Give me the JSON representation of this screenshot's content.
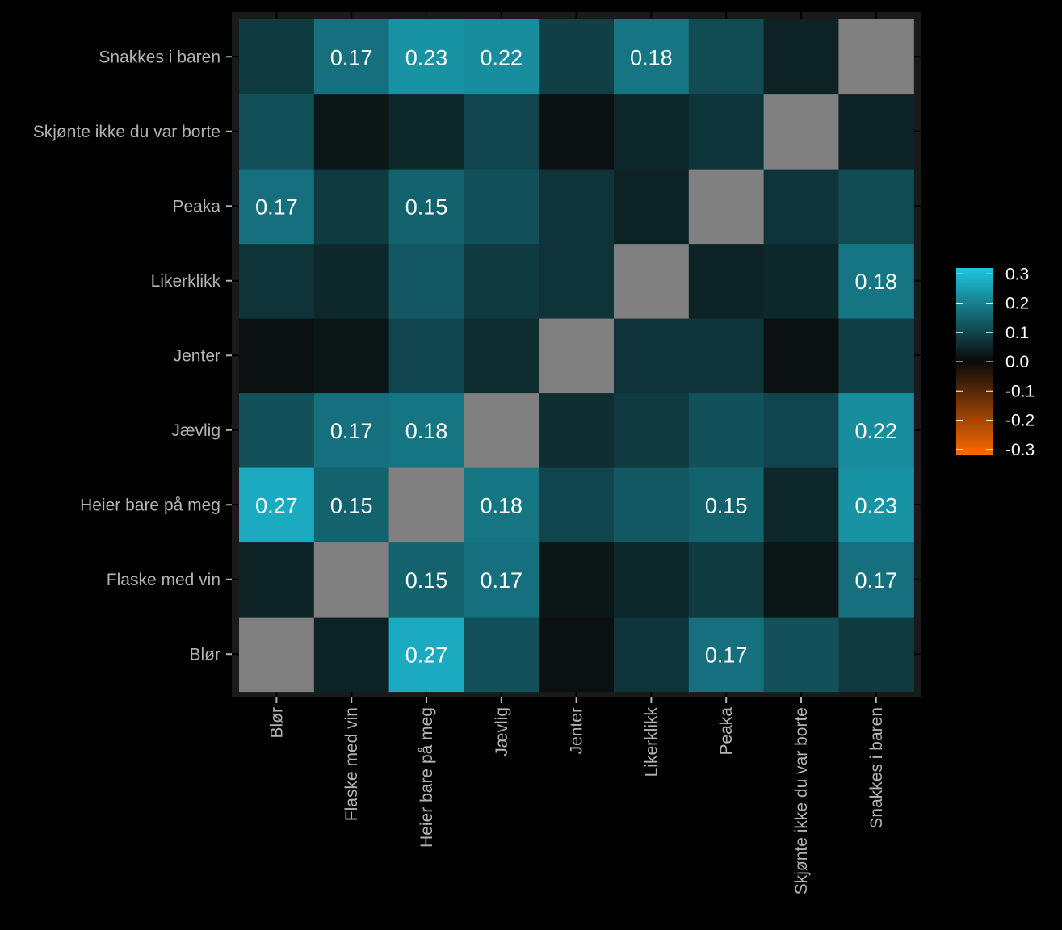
{
  "chart_data": {
    "type": "heatmap",
    "title": "",
    "xlabel": "",
    "ylabel": "",
    "x_categories": [
      "Blør",
      "Flaske med vin",
      "Heier bare på meg",
      "Jævlig",
      "Jenter",
      "Likerklikk",
      "Peaka",
      "Skjønte ikke du var borte",
      "Snakkes i baren"
    ],
    "y_categories": [
      "Blør",
      "Flaske med vin",
      "Heier bare på meg",
      "Jævlig",
      "Jenter",
      "Likerklikk",
      "Peaka",
      "Skjønte ikke du var borte",
      "Snakkes i baren"
    ],
    "matrix": [
      [
        null,
        0.04,
        0.27,
        0.12,
        0.01,
        0.07,
        0.17,
        0.12,
        0.08
      ],
      [
        0.04,
        null,
        0.15,
        0.17,
        0.02,
        0.05,
        0.08,
        0.02,
        0.17
      ],
      [
        0.27,
        0.15,
        null,
        0.18,
        0.1,
        0.13,
        0.15,
        0.05,
        0.23
      ],
      [
        0.12,
        0.17,
        0.18,
        null,
        0.06,
        0.08,
        0.12,
        0.1,
        0.22
      ],
      [
        0.01,
        0.02,
        0.1,
        0.06,
        null,
        0.07,
        0.07,
        0.01,
        0.09
      ],
      [
        0.07,
        0.05,
        0.13,
        0.08,
        0.07,
        null,
        0.04,
        0.05,
        0.18
      ],
      [
        0.17,
        0.08,
        0.15,
        0.12,
        0.07,
        0.04,
        null,
        0.07,
        0.11
      ],
      [
        0.12,
        0.02,
        0.05,
        0.1,
        0.01,
        0.05,
        0.07,
        null,
        0.04
      ],
      [
        0.08,
        0.17,
        0.23,
        0.22,
        0.09,
        0.18,
        0.11,
        0.04,
        null
      ]
    ],
    "cell_labels": [
      [
        "",
        "",
        "0.27",
        "",
        "",
        "",
        "0.17",
        "",
        ""
      ],
      [
        "",
        "",
        "0.15",
        "0.17",
        "",
        "",
        "",
        "",
        "0.17"
      ],
      [
        "0.27",
        "0.15",
        "",
        "0.18",
        "",
        "",
        "0.15",
        "",
        "0.23"
      ],
      [
        "",
        "0.17",
        "0.18",
        "",
        "",
        "",
        "",
        "",
        "0.22"
      ],
      [
        "",
        "",
        "",
        "",
        "",
        "",
        "",
        "",
        ""
      ],
      [
        "",
        "",
        "",
        "",
        "",
        "",
        "",
        "",
        "0.18"
      ],
      [
        "0.17",
        "",
        "0.15",
        "",
        "",
        "",
        "",
        "",
        ""
      ],
      [
        "",
        "",
        "",
        "",
        "",
        "",
        "",
        "",
        ""
      ],
      [
        "",
        "0.17",
        "0.23",
        "0.22",
        "",
        "0.18",
        "",
        "",
        ""
      ]
    ],
    "diagonal_color": "#808080",
    "legend": {
      "placement": "right",
      "ticks": [
        "0.3",
        "0.2",
        "0.1",
        "0.0",
        "-0.1",
        "-0.2",
        "-0.3"
      ],
      "tick_values": [
        0.3,
        0.2,
        0.1,
        0.0,
        -0.1,
        -0.2,
        -0.3
      ],
      "range": [
        -0.32,
        0.32
      ]
    },
    "color_scale": {
      "high": "#1ec8e0",
      "zero": "#0a0a0a",
      "low": "#ff6a00"
    },
    "background_color": "#000000",
    "panel_color": "#1a1a1a",
    "grid": true
  }
}
